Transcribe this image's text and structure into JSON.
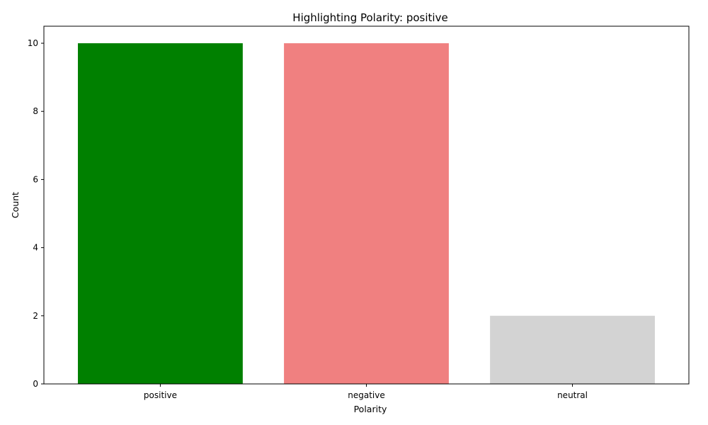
{
  "chart_data": {
    "type": "bar",
    "title": "Highlighting Polarity: positive",
    "xlabel": "Polarity",
    "ylabel": "Count",
    "categories": [
      "positive",
      "negative",
      "neutral"
    ],
    "values": [
      10,
      10,
      2
    ],
    "colors": [
      "#008000",
      "#f08080",
      "#d3d3d3"
    ],
    "ylim": [
      0,
      10.5
    ],
    "yticks": [
      0,
      2,
      4,
      6,
      8,
      10
    ],
    "grid": false,
    "legend": "none"
  }
}
